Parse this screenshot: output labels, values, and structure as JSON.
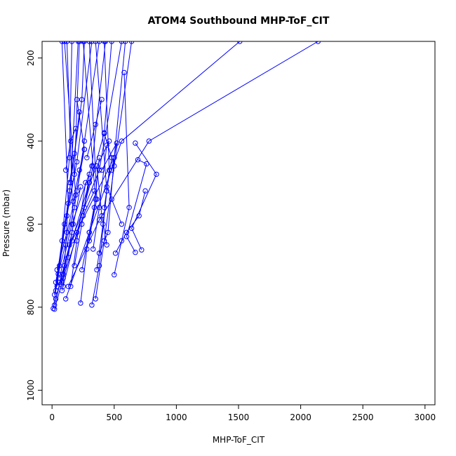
{
  "chart_data": {
    "type": "line",
    "title": "ATOM4 Southbound MHP-ToF_CIT",
    "xlabel": "MHP-ToF_CIT",
    "ylabel": "Pressure (mbar)",
    "xlim": [
      -80,
      3080
    ],
    "ylim": [
      1035,
      160
    ],
    "y_reversed": true,
    "xticks": [
      0,
      500,
      1000,
      1500,
      2000,
      2500,
      3000
    ],
    "yticks": [
      200,
      400,
      600,
      800,
      1000
    ],
    "series_color": "#0000ff",
    "marker": "open-circle",
    "profiles": [
      {
        "points": [
          [
            10,
            803
          ],
          [
            60,
            700
          ],
          [
            150,
            500
          ],
          [
            210,
            160
          ]
        ]
      },
      {
        "points": [
          [
            20,
            770
          ],
          [
            80,
            640
          ],
          [
            140,
            440
          ],
          [
            160,
            160
          ]
        ]
      },
      {
        "points": [
          [
            30,
            760
          ],
          [
            100,
            600
          ],
          [
            180,
            480
          ],
          [
            220,
            160
          ]
        ]
      },
      {
        "points": [
          [
            40,
            750
          ],
          [
            140,
            520
          ],
          [
            240,
            300
          ],
          [
            260,
            160
          ]
        ]
      },
      {
        "points": [
          [
            30,
            740
          ],
          [
            120,
            580
          ],
          [
            200,
            450
          ],
          [
            320,
            160
          ]
        ]
      },
      {
        "points": [
          [
            50,
            720
          ],
          [
            180,
            560
          ],
          [
            260,
            400
          ],
          [
            380,
            160
          ]
        ]
      },
      {
        "points": [
          [
            60,
            730
          ],
          [
            160,
            600
          ],
          [
            320,
            460
          ],
          [
            430,
            160
          ]
        ]
      },
      {
        "points": [
          [
            80,
            760
          ],
          [
            200,
            620
          ],
          [
            420,
            380
          ],
          [
            480,
            160
          ]
        ]
      },
      {
        "points": [
          [
            30,
            780
          ],
          [
            140,
            650
          ],
          [
            380,
            470
          ],
          [
            560,
            160
          ]
        ]
      },
      {
        "points": [
          [
            20,
            795
          ],
          [
            100,
            700
          ],
          [
            300,
            500
          ],
          [
            460,
            400
          ]
        ]
      },
      {
        "points": [
          [
            60,
            740
          ],
          [
            160,
            640
          ],
          [
            500,
            440
          ],
          [
            590,
            160
          ]
        ]
      },
      {
        "points": [
          [
            40,
            710
          ],
          [
            120,
            620
          ],
          [
            190,
            530
          ],
          [
            100,
            160
          ]
        ]
      },
      {
        "points": [
          [
            70,
            745
          ],
          [
            130,
            680
          ],
          [
            170,
            600
          ],
          [
            120,
            160
          ]
        ]
      },
      {
        "points": [
          [
            90,
            750
          ],
          [
            110,
            650
          ],
          [
            130,
            550
          ],
          [
            80,
            160
          ]
        ]
      },
      {
        "points": [
          [
            230,
            790
          ],
          [
            280,
            660
          ],
          [
            360,
            540
          ],
          [
            300,
            160
          ]
        ]
      },
      {
        "points": [
          [
            320,
            795
          ],
          [
            380,
            700
          ],
          [
            440,
            520
          ],
          [
            350,
            160
          ]
        ]
      },
      {
        "points": [
          [
            350,
            780
          ],
          [
            420,
            640
          ],
          [
            500,
            460
          ],
          [
            640,
            160
          ]
        ]
      },
      {
        "points": [
          [
            240,
            710
          ],
          [
            300,
            620
          ],
          [
            350,
            540
          ],
          [
            250,
            160
          ]
        ]
      },
      {
        "points": [
          [
            360,
            710
          ],
          [
            410,
            600
          ],
          [
            460,
            470
          ],
          [
            420,
            160
          ]
        ]
      },
      {
        "points": [
          [
            110,
            780
          ],
          [
            300,
            620
          ],
          [
            560,
            400
          ],
          [
            1510,
            160
          ]
        ]
      },
      {
        "points": [
          [
            130,
            750
          ],
          [
            380,
            590
          ],
          [
            780,
            400
          ],
          [
            2140,
            160
          ]
        ]
      },
      {
        "points": [
          [
            500,
            722
          ],
          [
            560,
            640
          ],
          [
            620,
            560
          ],
          [
            580,
            235
          ]
        ]
      },
      {
        "points": [
          [
            510,
            670
          ],
          [
            600,
            620
          ],
          [
            700,
            580
          ],
          [
            750,
            520
          ]
        ]
      },
      {
        "points": [
          [
            720,
            662
          ],
          [
            640,
            610
          ],
          [
            840,
            480
          ],
          [
            670,
            405
          ]
        ]
      },
      {
        "points": [
          [
            670,
            668
          ],
          [
            600,
            630
          ],
          [
            760,
            455
          ],
          [
            690,
            445
          ]
        ]
      },
      {
        "points": [
          [
            480,
            470
          ],
          [
            520,
            405
          ],
          [
            400,
            470
          ]
        ]
      },
      {
        "points": [
          [
            280,
            440
          ],
          [
            350,
            360
          ],
          [
            400,
            300
          ]
        ]
      },
      {
        "points": [
          [
            200,
            520
          ],
          [
            260,
            420
          ],
          [
            200,
            300
          ]
        ]
      },
      {
        "points": [
          [
            420,
            560
          ],
          [
            480,
            440
          ],
          [
            420,
            382
          ]
        ]
      },
      {
        "points": [
          [
            330,
            660
          ],
          [
            380,
            560
          ],
          [
            440,
            410
          ]
        ]
      },
      {
        "points": [
          [
            180,
            700
          ],
          [
            240,
            600
          ],
          [
            300,
            480
          ]
        ]
      },
      {
        "points": [
          [
            150,
            750
          ],
          [
            200,
            640
          ],
          [
            270,
            500
          ]
        ]
      },
      {
        "points": [
          [
            90,
            720
          ],
          [
            160,
            620
          ],
          [
            230,
            510
          ]
        ]
      },
      {
        "points": [
          [
            440,
            650
          ],
          [
            400,
            580
          ],
          [
            360,
            460
          ]
        ]
      },
      {
        "points": [
          [
            560,
            600
          ],
          [
            480,
            540
          ],
          [
            440,
            510
          ]
        ]
      },
      {
        "points": [
          [
            380,
            670
          ],
          [
            450,
            620
          ],
          [
            500,
            440
          ]
        ]
      },
      {
        "points": [
          [
            300,
            640
          ],
          [
            340,
            560
          ],
          [
            380,
            440
          ]
        ]
      },
      {
        "points": [
          [
            260,
            560
          ],
          [
            300,
            500
          ],
          [
            330,
            460
          ]
        ]
      },
      {
        "points": [
          [
            170,
            545
          ],
          [
            220,
            470
          ],
          [
            260,
            420
          ]
        ]
      },
      {
        "points": [
          [
            140,
            500
          ],
          [
            180,
            430
          ],
          [
            220,
            330
          ]
        ]
      },
      {
        "points": [
          [
            110,
            470
          ],
          [
            150,
            400
          ],
          [
            190,
            370
          ]
        ]
      },
      {
        "points": [
          [
            20,
            805
          ],
          [
            90,
            730
          ],
          [
            250,
            580
          ],
          [
            340,
            520
          ]
        ]
      }
    ]
  }
}
